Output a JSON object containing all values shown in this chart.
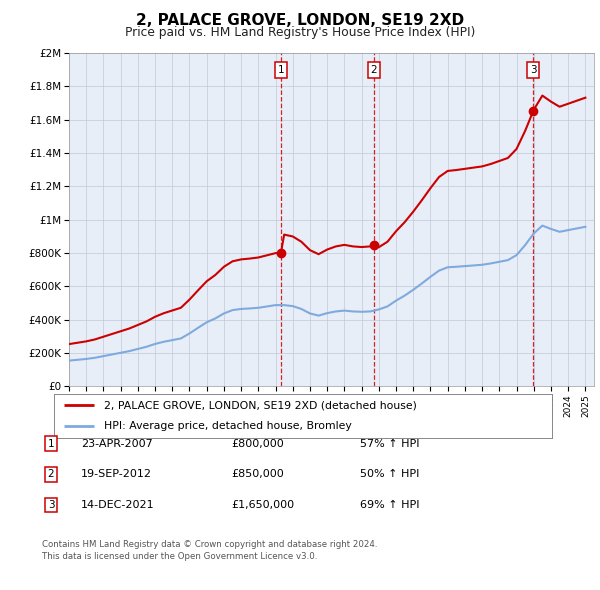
{
  "title": "2, PALACE GROVE, LONDON, SE19 2XD",
  "subtitle": "Price paid vs. HM Land Registry's House Price Index (HPI)",
  "title_fontsize": 11,
  "subtitle_fontsize": 9,
  "background_color": "#ffffff",
  "plot_bg_color": "#e8eef8",
  "ylim": [
    0,
    2000000
  ],
  "yticks": [
    0,
    200000,
    400000,
    600000,
    800000,
    1000000,
    1200000,
    1400000,
    1600000,
    1800000,
    2000000
  ],
  "ytick_labels": [
    "£0",
    "£200K",
    "£400K",
    "£600K",
    "£800K",
    "£1M",
    "£1.2M",
    "£1.4M",
    "£1.6M",
    "£1.8M",
    "£2M"
  ],
  "purchase_dates": [
    2007.31,
    2012.72,
    2021.96
  ],
  "purchase_prices": [
    800000,
    850000,
    1650000
  ],
  "purchase_labels": [
    "1",
    "2",
    "3"
  ],
  "legend_line1": "2, PALACE GROVE, LONDON, SE19 2XD (detached house)",
  "legend_line2": "HPI: Average price, detached house, Bromley",
  "table_rows": [
    {
      "num": "1",
      "date": "23-APR-2007",
      "price": "£800,000",
      "change": "57% ↑ HPI"
    },
    {
      "num": "2",
      "date": "19-SEP-2012",
      "price": "£850,000",
      "change": "50% ↑ HPI"
    },
    {
      "num": "3",
      "date": "14-DEC-2021",
      "price": "£1,650,000",
      "change": "69% ↑ HPI"
    }
  ],
  "footer": "Contains HM Land Registry data © Crown copyright and database right 2024.\nThis data is licensed under the Open Government Licence v3.0.",
  "hpi_color": "#7faadd",
  "price_color": "#cc0000",
  "vline_color": "#cc0000",
  "xmin": 1995,
  "xmax": 2025.5
}
